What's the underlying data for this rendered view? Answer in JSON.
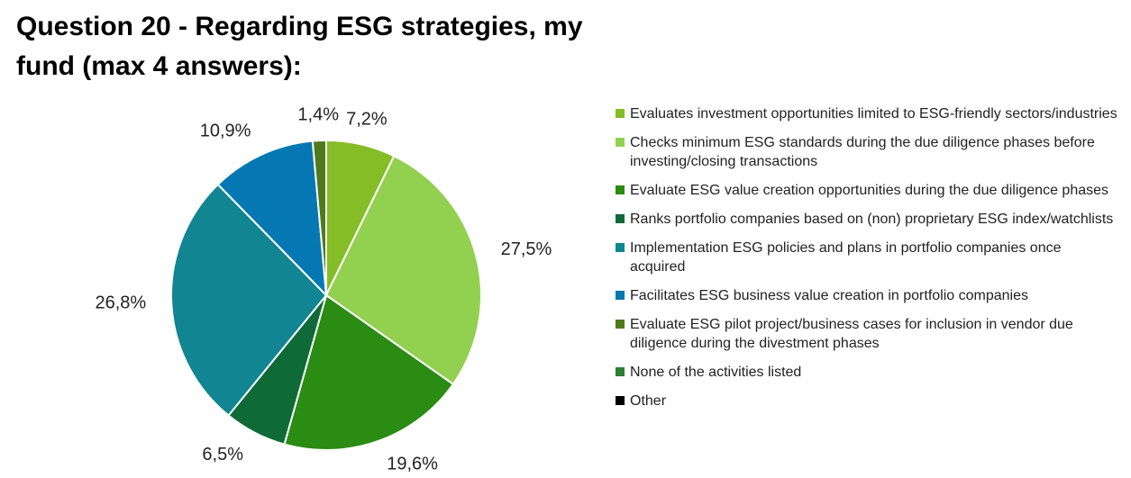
{
  "chart_data": {
    "type": "pie",
    "title": "Question 20 - Regarding ESG strategies, my fund (max 4 answers):",
    "categories": [
      "Evaluates investment opportunities limited to ESG-friendly sectors/industries",
      "Checks minimum ESG standards during the due diligence phases before investing/closing transactions",
      "Evaluate ESG value creation opportunities during the due diligence phases",
      "Ranks portfolio companies based on (non) proprietary ESG index/watchlists",
      "Implementation ESG policies and plans in portfolio companies once acquired",
      "Facilitates ESG business value creation in portfolio companies",
      "Evaluate ESG pilot project/business cases for inclusion in vendor due diligence during the divestment phases",
      "None of the activities listed",
      "Other"
    ],
    "values": [
      7.2,
      27.5,
      19.6,
      6.5,
      26.8,
      10.9,
      1.4,
      0,
      0
    ],
    "value_labels": [
      "7,2%",
      "27,5%",
      "19,6%",
      "6,5%",
      "26,8%",
      "10,9%",
      "1,4%",
      null,
      null
    ],
    "colors": [
      "#84bd26",
      "#92d050",
      "#2a8c13",
      "#0e6b38",
      "#118591",
      "#0578b4",
      "#4e7a1c",
      "#2e7d32",
      "#000000"
    ],
    "legend": "right"
  }
}
